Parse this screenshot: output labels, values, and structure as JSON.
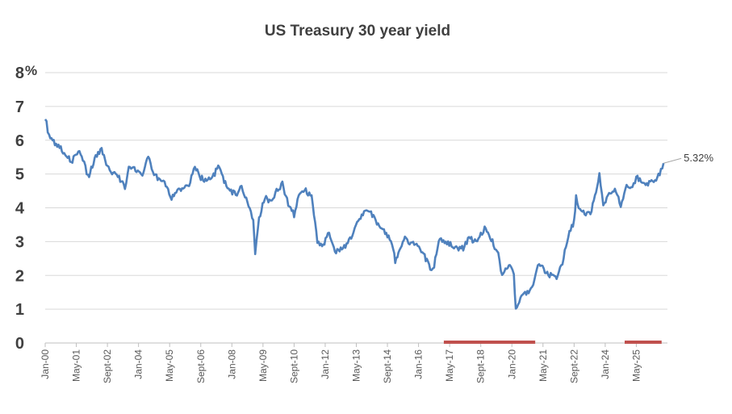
{
  "chart_data": {
    "type": "line",
    "title": "US Treasury 30 year yield",
    "xlabel": "",
    "ylabel": "",
    "y_unit_suffix": "%",
    "ylim": [
      0,
      8
    ],
    "y_ticks": [
      "0",
      "1",
      "2",
      "3",
      "4",
      "5",
      "6",
      "7",
      "8"
    ],
    "x_range": [
      "2000-01",
      "2026-09"
    ],
    "x_ticks": [
      {
        "label": "Jan-00",
        "date": "2000-01"
      },
      {
        "label": "May-01",
        "date": "2001-05"
      },
      {
        "label": "Sept-02",
        "date": "2002-09"
      },
      {
        "label": "Jan-04",
        "date": "2004-01"
      },
      {
        "label": "May-05",
        "date": "2005-05"
      },
      {
        "label": "Sept-06",
        "date": "2006-09"
      },
      {
        "label": "Jan-08",
        "date": "2008-01"
      },
      {
        "label": "May-09",
        "date": "2009-05"
      },
      {
        "label": "Sept-10",
        "date": "2010-09"
      },
      {
        "label": "Jan-12",
        "date": "2012-01"
      },
      {
        "label": "May-13",
        "date": "2013-05"
      },
      {
        "label": "Sept-14",
        "date": "2014-09"
      },
      {
        "label": "Jan-16",
        "date": "2016-01"
      },
      {
        "label": "May-17",
        "date": "2017-05"
      },
      {
        "label": "Sept-18",
        "date": "2018-09"
      },
      {
        "label": "Jan-20",
        "date": "2020-01"
      },
      {
        "label": "May-21",
        "date": "2021-05"
      },
      {
        "label": "Sept-22",
        "date": "2022-09"
      },
      {
        "label": "Jan-24",
        "date": "2024-01"
      },
      {
        "label": "May-25",
        "date": "2025-05"
      }
    ],
    "grid": true,
    "line_color": "#4f81bd",
    "highlight_color": "#c0504d",
    "highlight_periods": [
      {
        "start": "2017-02",
        "end": "2021-01"
      },
      {
        "start": "2024-11",
        "end": "2026-06"
      }
    ],
    "end_label": "5.32%",
    "series": [
      {
        "x": [
          "2000-01",
          "2000-03",
          "2000-06",
          "2000-09",
          "2000-12",
          "2001-03",
          "2001-06",
          "2001-09",
          "2001-11",
          "2002-03",
          "2002-06",
          "2002-09",
          "2002-12",
          "2003-03",
          "2003-06",
          "2003-08",
          "2003-12",
          "2004-03",
          "2004-06",
          "2004-09",
          "2004-12",
          "2005-03",
          "2005-06",
          "2005-09",
          "2005-12",
          "2006-03",
          "2006-06",
          "2006-09",
          "2006-12",
          "2007-03",
          "2007-06",
          "2007-09",
          "2007-12",
          "2008-03",
          "2008-06",
          "2008-09",
          "2008-12",
          "2009-01",
          "2009-03",
          "2009-06",
          "2009-09",
          "2009-12",
          "2010-03",
          "2010-06",
          "2010-09",
          "2010-12",
          "2011-03",
          "2011-06",
          "2011-09",
          "2011-12",
          "2012-03",
          "2012-06",
          "2012-09",
          "2012-12",
          "2013-03",
          "2013-06",
          "2013-09",
          "2013-12",
          "2014-03",
          "2014-06",
          "2014-09",
          "2014-12",
          "2015-01",
          "2015-06",
          "2015-09",
          "2015-12",
          "2016-03",
          "2016-07",
          "2016-09",
          "2016-12",
          "2017-03",
          "2017-06",
          "2017-09",
          "2017-12",
          "2018-03",
          "2018-06",
          "2018-09",
          "2018-11",
          "2019-03",
          "2019-06",
          "2019-08",
          "2019-12",
          "2020-02",
          "2020-03",
          "2020-06",
          "2020-09",
          "2020-12",
          "2021-03",
          "2021-06",
          "2021-09",
          "2021-12",
          "2022-03",
          "2022-06",
          "2022-09",
          "2022-10",
          "2022-12",
          "2023-03",
          "2023-06",
          "2023-10",
          "2023-12",
          "2024-03",
          "2024-06",
          "2024-09",
          "2024-12",
          "2025-03",
          "2025-05",
          "2025-08",
          "2025-11",
          "2026-02",
          "2026-05",
          "2026-07"
        ],
        "values": [
          6.7,
          6.1,
          5.9,
          5.8,
          5.5,
          5.4,
          5.7,
          5.4,
          4.9,
          5.5,
          5.7,
          5.2,
          5.0,
          4.9,
          4.6,
          5.2,
          5.1,
          4.9,
          5.5,
          5.0,
          4.8,
          4.7,
          4.3,
          4.5,
          4.6,
          4.7,
          5.2,
          4.9,
          4.8,
          4.9,
          5.2,
          4.8,
          4.5,
          4.4,
          4.6,
          4.2,
          3.6,
          2.6,
          3.7,
          4.3,
          4.2,
          4.5,
          4.7,
          4.1,
          3.8,
          4.5,
          4.5,
          4.3,
          3.0,
          2.9,
          3.3,
          2.7,
          2.8,
          2.9,
          3.2,
          3.6,
          3.9,
          3.9,
          3.6,
          3.4,
          3.2,
          2.8,
          2.4,
          3.1,
          2.9,
          3.0,
          2.7,
          2.2,
          2.3,
          3.1,
          3.0,
          2.9,
          2.8,
          2.8,
          3.1,
          3.0,
          3.2,
          3.4,
          3.0,
          2.6,
          2.0,
          2.3,
          2.0,
          1.0,
          1.4,
          1.5,
          1.7,
          2.4,
          2.1,
          2.0,
          1.9,
          2.4,
          3.2,
          3.6,
          4.3,
          3.9,
          3.8,
          3.9,
          5.0,
          4.1,
          4.4,
          4.5,
          4.1,
          4.6,
          4.6,
          4.9,
          4.8,
          4.7,
          4.8,
          5.0,
          5.32
        ]
      }
    ]
  }
}
